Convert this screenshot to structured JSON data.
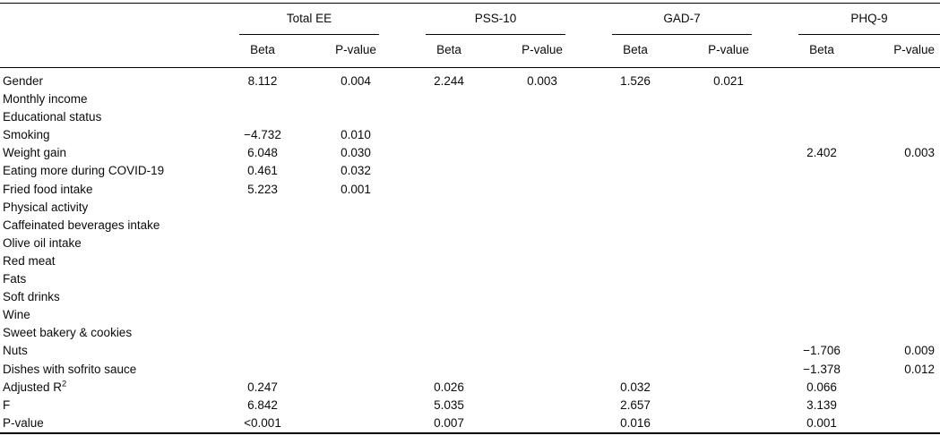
{
  "table": {
    "groups": [
      {
        "label": "Total EE"
      },
      {
        "label": "PSS-10"
      },
      {
        "label": "GAD-7"
      },
      {
        "label": "PHQ-9"
      }
    ],
    "subheaders": [
      "Beta",
      "P-value",
      "Beta",
      "P-value",
      "Beta",
      "P-value",
      "Beta",
      "P-value"
    ],
    "rows": [
      {
        "label": "Gender",
        "values": [
          "8.112",
          "0.004",
          "2.244",
          "0.003",
          "1.526",
          "0.021",
          "",
          ""
        ]
      },
      {
        "label": "Monthly income",
        "values": [
          "",
          "",
          "",
          "",
          "",
          "",
          "",
          ""
        ]
      },
      {
        "label": "Educational status",
        "values": [
          "",
          "",
          "",
          "",
          "",
          "",
          "",
          ""
        ]
      },
      {
        "label": "Smoking",
        "values": [
          "−4.732",
          "0.010",
          "",
          "",
          "",
          "",
          "",
          ""
        ]
      },
      {
        "label": "Weight gain",
        "values": [
          "6.048",
          "0.030",
          "",
          "",
          "",
          "",
          "2.402",
          "0.003"
        ]
      },
      {
        "label": "Eating more during COVID-19",
        "values": [
          "0.461",
          "0.032",
          "",
          "",
          "",
          "",
          "",
          ""
        ]
      },
      {
        "label": "Fried food intake",
        "values": [
          "5.223",
          "0.001",
          "",
          "",
          "",
          "",
          "",
          ""
        ]
      },
      {
        "label": "Physical activity",
        "values": [
          "",
          "",
          "",
          "",
          "",
          "",
          "",
          ""
        ]
      },
      {
        "label": "Caffeinated beverages intake",
        "values": [
          "",
          "",
          "",
          "",
          "",
          "",
          "",
          ""
        ]
      },
      {
        "label": "Olive oil intake",
        "values": [
          "",
          "",
          "",
          "",
          "",
          "",
          "",
          ""
        ]
      },
      {
        "label": "Red meat",
        "values": [
          "",
          "",
          "",
          "",
          "",
          "",
          "",
          ""
        ]
      },
      {
        "label": "Fats",
        "values": [
          "",
          "",
          "",
          "",
          "",
          "",
          "",
          ""
        ]
      },
      {
        "label": "Soft drinks",
        "values": [
          "",
          "",
          "",
          "",
          "",
          "",
          "",
          ""
        ]
      },
      {
        "label": "Wine",
        "values": [
          "",
          "",
          "",
          "",
          "",
          "",
          "",
          ""
        ]
      },
      {
        "label": "Sweet bakery & cookies",
        "values": [
          "",
          "",
          "",
          "",
          "",
          "",
          "",
          ""
        ]
      },
      {
        "label": "Nuts",
        "values": [
          "",
          "",
          "",
          "",
          "",
          "",
          "−1.706",
          "0.009"
        ]
      },
      {
        "label": "Dishes with sofrito sauce",
        "values": [
          "",
          "",
          "",
          "",
          "",
          "",
          "−1.378",
          "0.012"
        ]
      },
      {
        "label": "Adjusted R",
        "label_sup": "2",
        "values": [
          "0.247",
          "",
          "0.026",
          "",
          "0.032",
          "",
          "0.066",
          ""
        ]
      },
      {
        "label": "F",
        "values": [
          "6.842",
          "",
          "5.035",
          "",
          "2.657",
          "",
          "3.139",
          ""
        ]
      },
      {
        "label": "P-value",
        "values": [
          "<0.001",
          "",
          "0.007",
          "",
          "0.016",
          "",
          "0.001",
          ""
        ]
      }
    ]
  }
}
